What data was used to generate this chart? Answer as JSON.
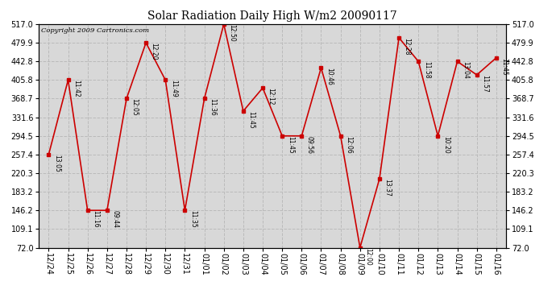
{
  "title": "Solar Radiation Daily High W/m2 20090117",
  "copyright": "Copyright 2009 Cartronics.com",
  "background_color": "#ffffff",
  "plot_bg_color": "#d8d8d8",
  "grid_color": "#bbbbbb",
  "line_color": "#cc0000",
  "marker_color": "#cc0000",
  "dates": [
    "12/24",
    "12/25",
    "12/26",
    "12/27",
    "12/28",
    "12/29",
    "12/30",
    "12/31",
    "01/01",
    "01/02",
    "01/03",
    "01/04",
    "01/05",
    "01/06",
    "01/07",
    "01/08",
    "01/09",
    "01/10",
    "01/11",
    "01/12",
    "01/13",
    "01/14",
    "01/15",
    "01/16"
  ],
  "values": [
    257.4,
    405.8,
    146.2,
    146.2,
    368.7,
    479.9,
    405.8,
    146.2,
    368.7,
    517.0,
    344.0,
    390.0,
    294.5,
    294.5,
    430.0,
    294.5,
    72.0,
    209.0,
    490.0,
    442.8,
    294.5,
    442.8,
    416.0,
    450.0
  ],
  "labels": [
    "13:05",
    "11:42",
    "11:16",
    "09:44",
    "12:05",
    "12:20",
    "11:49",
    "11:35",
    "11:36",
    "12:50",
    "11:45",
    "12:12",
    "11:45",
    "09:56",
    "10:46",
    "12:06",
    "12:00",
    "13:37",
    "12:28",
    "11:58",
    "10:20",
    "13:04",
    "11:57",
    "11:45"
  ],
  "ylim": [
    72.0,
    517.0
  ],
  "yticks": [
    72.0,
    109.1,
    146.2,
    183.2,
    220.3,
    257.4,
    294.5,
    331.6,
    368.7,
    405.8,
    442.8,
    479.9,
    517.0
  ]
}
